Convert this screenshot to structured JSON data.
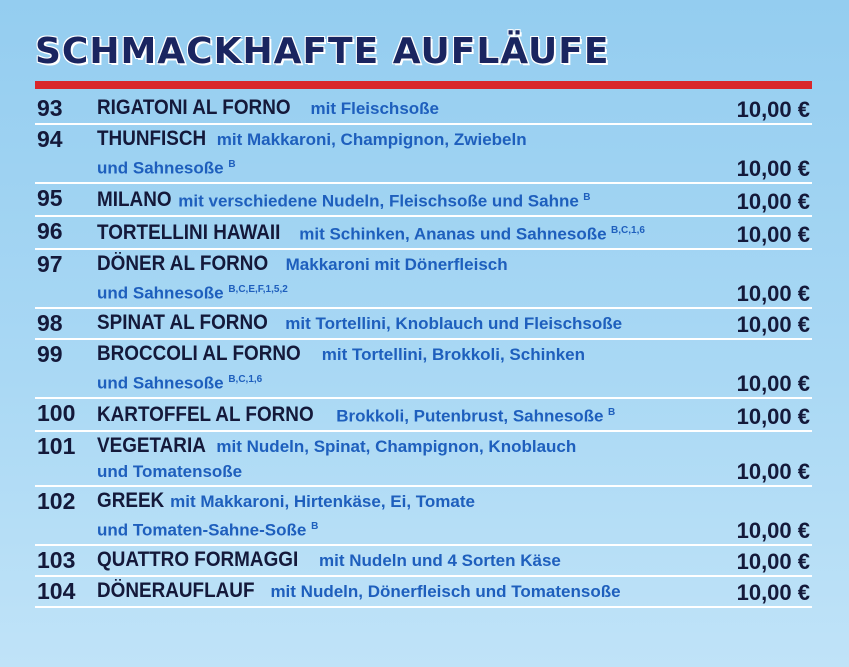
{
  "heading": "SCHMACKHAFTE AUFLÄUFE",
  "accent_color": "#d9262b",
  "items": [
    {
      "num": "93",
      "name": "RIGATONI AL FORNO",
      "desc": "mit Fleischsoße",
      "desc2": "",
      "sup": "",
      "price": "10,00 €"
    },
    {
      "num": "94",
      "name": "THUNFISCH",
      "desc": "mit Makkaroni, Champignon, Zwiebeln",
      "desc2": "und Sahnesoße",
      "sup": "B",
      "price": "10,00 €"
    },
    {
      "num": "95",
      "name": "MILANO",
      "desc": "mit verschiedene Nudeln, Fleischsoße und Sahne",
      "desc2": "",
      "sup": "B",
      "price": "10,00 €"
    },
    {
      "num": "96",
      "name": "TORTELLINI HAWAII",
      "desc": "mit Schinken, Ananas und Sahnesoße",
      "desc2": "",
      "sup": "B,C,1,6",
      "price": "10,00 €"
    },
    {
      "num": "97",
      "name": "DÖNER AL FORNO",
      "desc": "Makkaroni mit Dönerfleisch",
      "desc2": "und Sahnesoße",
      "sup": "B,C,E,F,1,5,2",
      "price": "10,00 €"
    },
    {
      "num": "98",
      "name": "SPINAT AL FORNO",
      "desc": "mit Tortellini, Knoblauch und Fleischsoße",
      "desc2": "",
      "sup": "",
      "price": "10,00 €"
    },
    {
      "num": "99",
      "name": "BROCCOLI AL FORNO",
      "desc": "mit Tortellini, Brokkoli, Schinken",
      "desc2": "und Sahnesoße",
      "sup": "B,C,1,6",
      "price": "10,00 €"
    },
    {
      "num": "100",
      "name": "KARTOFFEL AL FORNO",
      "desc": "Brokkoli, Putenbrust, Sahnesoße",
      "desc2": "",
      "sup": "B",
      "price": "10,00 €"
    },
    {
      "num": "101",
      "name": "VEGETARIA",
      "desc": "mit Nudeln, Spinat, Champignon, Knoblauch",
      "desc2": "und Tomatensoße",
      "sup": "",
      "price": "10,00 €"
    },
    {
      "num": "102",
      "name": "GREEK",
      "desc": "mit Makkaroni, Hirtenkäse, Ei, Tomate",
      "desc2": "und Tomaten-Sahne-Soße",
      "sup": "B",
      "price": "10,00 €"
    },
    {
      "num": "103",
      "name": "QUATTRO FORMAGGI",
      "desc": "mit Nudeln und 4 Sorten Käse",
      "desc2": "",
      "sup": "",
      "price": "10,00 €"
    },
    {
      "num": "104",
      "name": "DÖNERAUFLAUF",
      "desc": "mit Nudeln, Dönerfleisch und Tomatensoße",
      "desc2": "",
      "sup": "",
      "price": "10,00 €"
    }
  ]
}
